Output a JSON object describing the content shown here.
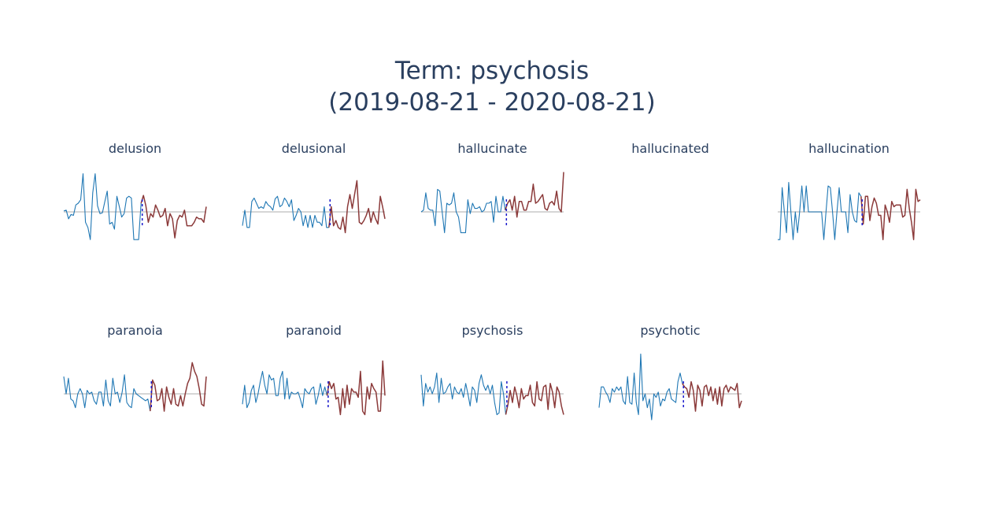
{
  "title": {
    "line1": "Term: psychosis",
    "line2": "(2019-08-21 - 2020-08-21)"
  },
  "colors": {
    "before": "#1f77b4",
    "after": "#8b3a3a",
    "baseline": "#c8c8c8",
    "split": "#1a1acc"
  },
  "chart_data": [
    {
      "type": "line",
      "title": "delusion",
      "split_index": 32,
      "values": [
        0.05,
        0.1,
        -0.4,
        -0.15,
        -0.2,
        0.4,
        0.5,
        0.7,
        2.2,
        -0.6,
        -0.9,
        -1.6,
        1.1,
        2.2,
        0.35,
        -0.1,
        -0.05,
        0.6,
        1.2,
        -0.7,
        -0.6,
        -1.0,
        0.9,
        0.3,
        -0.3,
        -0.1,
        0.8,
        0.9,
        0.8,
        -1.6,
        -1.6,
        -1.6,
        0.5,
        0.95,
        0.35,
        -0.6,
        -0.1,
        -0.3,
        0.4,
        0.1,
        -0.3,
        -0.2,
        0.2,
        -0.8,
        -0.1,
        -0.4,
        -1.5,
        -0.5,
        -0.2,
        -0.3,
        0.1,
        -0.8,
        -0.8,
        -0.8,
        -0.6,
        -0.3,
        -0.4,
        -0.4,
        -0.6,
        0.3
      ]
    },
    {
      "type": "line",
      "title": "delusional",
      "split_index": 37,
      "values": [
        -0.8,
        0.1,
        -0.9,
        -0.9,
        0.6,
        0.8,
        0.5,
        0.2,
        0.3,
        0.2,
        0.6,
        0.4,
        0.3,
        0.1,
        0.75,
        0.9,
        0.3,
        0.4,
        0.8,
        0.6,
        0.3,
        0.7,
        -0.5,
        -0.2,
        0.2,
        0.0,
        -0.8,
        -0.2,
        -0.9,
        -0.2,
        -0.9,
        -0.2,
        -0.6,
        -0.6,
        -0.8,
        0.3,
        -0.9,
        -0.9,
        0.3,
        -0.8,
        -0.5,
        -0.9,
        -1.0,
        -0.3,
        -1.2,
        0.3,
        1.0,
        0.2,
        1.0,
        1.8,
        -0.6,
        -0.7,
        -0.5,
        -0.2,
        0.2,
        -0.6,
        0.0,
        -0.4,
        -0.7,
        0.9,
        0.3,
        -0.4
      ]
    },
    {
      "type": "line",
      "title": "hallucinate",
      "split_index": 36,
      "values": [
        0.0,
        0.1,
        1.1,
        0.2,
        0.1,
        0.1,
        -0.8,
        1.3,
        1.2,
        0.0,
        -1.2,
        0.5,
        0.4,
        0.5,
        1.1,
        0.0,
        -0.3,
        -1.2,
        -1.2,
        -1.2,
        0.7,
        -0.1,
        0.5,
        0.2,
        0.2,
        0.3,
        0.0,
        0.1,
        0.5,
        0.5,
        0.6,
        -0.6,
        0.9,
        0.0,
        0.0,
        0.9,
        0.1,
        0.5,
        0.7,
        0.1,
        0.9,
        -0.3,
        0.6,
        0.6,
        0.1,
        0.1,
        0.6,
        0.6,
        1.6,
        0.5,
        0.6,
        0.8,
        1.0,
        0.2,
        0.1,
        0.5,
        0.6,
        0.4,
        1.2,
        0.2,
        0.0,
        2.3
      ]
    },
    {
      "type": "line",
      "title": "hallucinated",
      "split_index": 31,
      "values": []
    },
    {
      "type": "line",
      "title": "hallucination",
      "split_index": 38,
      "values": [
        -1.6,
        -1.6,
        1.4,
        0.0,
        -1.2,
        1.7,
        0.0,
        -1.6,
        0.0,
        -1.2,
        0.0,
        1.5,
        0.0,
        1.5,
        0.0,
        0.0,
        0.0,
        0.0,
        0.0,
        0.0,
        0.0,
        -1.6,
        0.0,
        1.5,
        1.4,
        0.0,
        -1.6,
        0.0,
        1.4,
        0.0,
        0.0,
        0.0,
        -1.2,
        1.0,
        0.0,
        -0.5,
        -0.6,
        1.1,
        0.9,
        -0.7,
        0.9,
        0.9,
        -0.5,
        0.3,
        0.8,
        0.5,
        -0.2,
        -0.2,
        -1.6,
        0.4,
        0.0,
        -0.6,
        0.6,
        0.3,
        0.4,
        0.4,
        0.4,
        -0.3,
        -0.2,
        1.3,
        0.2,
        -0.6,
        -1.6,
        1.3,
        0.6,
        0.7
      ]
    },
    {
      "type": "line",
      "title": "paranoia",
      "split_index": 37,
      "values": [
        1.0,
        0.0,
        0.9,
        -0.3,
        -0.4,
        -0.8,
        0.0,
        0.3,
        0.0,
        -0.8,
        0.2,
        0.0,
        0.1,
        -0.4,
        -0.6,
        0.1,
        0.1,
        -0.7,
        0.8,
        -0.4,
        -0.7,
        0.9,
        0.0,
        0.1,
        -0.5,
        0.1,
        1.1,
        -0.5,
        -0.7,
        -0.8,
        0.3,
        0.0,
        -0.1,
        -0.2,
        -0.3,
        -0.4,
        -0.3,
        -1.0,
        0.8,
        0.5,
        -0.4,
        -0.3,
        0.3,
        -1.0,
        0.4,
        -0.2,
        -0.6,
        0.3,
        -0.6,
        -0.7,
        -0.1,
        -0.7,
        0.0,
        0.6,
        0.9,
        1.8,
        1.3,
        1.0,
        0.3,
        -0.6,
        -0.7,
        1.0
      ]
    },
    {
      "type": "line",
      "title": "paranoid",
      "split_index": 38,
      "values": [
        -0.6,
        0.5,
        -0.8,
        -0.5,
        0.2,
        0.5,
        -0.5,
        0.0,
        0.7,
        1.3,
        0.5,
        0.0,
        1.1,
        0.8,
        0.9,
        -0.1,
        -0.1,
        0.9,
        1.3,
        -0.3,
        0.9,
        -0.3,
        0.1,
        0.0,
        0.0,
        0.1,
        -0.3,
        -0.8,
        0.3,
        0.1,
        0.0,
        0.3,
        0.4,
        -0.6,
        -0.1,
        0.6,
        -0.1,
        0.4,
        -0.1,
        0.7,
        0.3,
        0.6,
        -0.3,
        -0.2,
        -1.2,
        0.3,
        -0.8,
        0.5,
        -0.6,
        0.3,
        0.1,
        0.1,
        -0.2,
        1.3,
        -1.0,
        -1.2,
        0.4,
        -0.3,
        0.6,
        0.3,
        0.1,
        -1.0,
        -1.0,
        1.9,
        -0.1
      ]
    },
    {
      "type": "line",
      "title": "psychosis",
      "split_index": 38,
      "values": [
        1.1,
        -0.7,
        0.6,
        0.1,
        0.4,
        0.0,
        0.4,
        1.2,
        -0.5,
        0.9,
        0.0,
        0.1,
        0.4,
        0.6,
        -0.3,
        0.4,
        0.1,
        0.0,
        0.3,
        -0.2,
        0.6,
        0.0,
        -0.7,
        0.4,
        0.2,
        -0.5,
        0.6,
        1.1,
        0.5,
        0.2,
        0.5,
        0.0,
        0.5,
        -0.5,
        -1.2,
        -1.1,
        0.7,
        0.0,
        -1.2,
        -0.6,
        0.2,
        -0.5,
        0.4,
        -0.1,
        -0.8,
        0.3,
        -0.3,
        -0.1,
        -0.1,
        0.5,
        -0.5,
        -0.7,
        0.7,
        -0.3,
        -0.4,
        0.4,
        0.5,
        -0.9,
        0.6,
        0.1,
        -0.8,
        0.4,
        0.1,
        -0.7,
        -1.2
      ]
    },
    {
      "type": "line",
      "title": "psychotic",
      "split_index": 38,
      "values": [
        -0.8,
        0.4,
        0.4,
        0.1,
        -0.1,
        -0.5,
        0.3,
        0.1,
        0.4,
        0.2,
        0.4,
        -0.4,
        -0.6,
        1.0,
        -0.5,
        -0.6,
        1.2,
        -0.5,
        -1.2,
        2.3,
        -0.4,
        0.0,
        -0.8,
        -0.3,
        -1.5,
        0.0,
        -0.2,
        0.1,
        -0.7,
        -0.3,
        -0.4,
        0.1,
        0.3,
        -0.3,
        -0.4,
        -0.5,
        0.7,
        1.2,
        0.6,
        0.4,
        0.3,
        -0.2,
        0.7,
        0.2,
        -1.0,
        0.5,
        0.2,
        -0.7,
        0.4,
        0.5,
        -0.1,
        0.4,
        -0.4,
        0.3,
        -0.6,
        0.4,
        -0.7,
        0.3,
        0.5,
        0.1,
        0.4,
        0.3,
        0.2,
        0.6,
        -0.8,
        -0.4
      ]
    }
  ]
}
